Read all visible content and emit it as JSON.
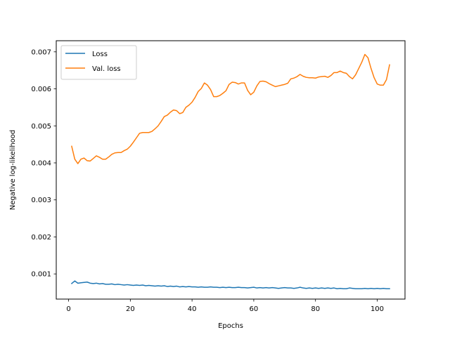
{
  "chart_data": {
    "type": "line",
    "title": "",
    "xlabel": "Epochs",
    "ylabel": "Negative log-likelihood",
    "xlim": [
      -4,
      109
    ],
    "ylim": [
      0.00032,
      0.0073
    ],
    "x_ticks": [
      0,
      20,
      40,
      60,
      80,
      100
    ],
    "x_tick_labels": [
      "0",
      "20",
      "40",
      "60",
      "80",
      "100"
    ],
    "y_ticks": [
      0.001,
      0.002,
      0.003,
      0.004,
      0.005,
      0.006,
      0.007
    ],
    "y_tick_labels": [
      "0.001",
      "0.002",
      "0.003",
      "0.004",
      "0.005",
      "0.006",
      "0.007"
    ],
    "grid": false,
    "legend": {
      "position": "top-left",
      "entries": [
        "Loss",
        "Val. loss"
      ]
    },
    "series": [
      {
        "name": "Loss",
        "color": "#1f77b4",
        "x": [
          1,
          2,
          3,
          4,
          5,
          6,
          7,
          8,
          9,
          10,
          11,
          12,
          13,
          14,
          15,
          16,
          17,
          18,
          19,
          20,
          21,
          22,
          23,
          24,
          25,
          26,
          27,
          28,
          29,
          30,
          31,
          32,
          33,
          34,
          35,
          36,
          37,
          38,
          39,
          40,
          41,
          42,
          43,
          44,
          45,
          46,
          47,
          48,
          49,
          50,
          51,
          52,
          53,
          54,
          55,
          56,
          57,
          58,
          59,
          60,
          61,
          62,
          63,
          64,
          65,
          66,
          67,
          68,
          69,
          70,
          71,
          72,
          73,
          74,
          75,
          76,
          77,
          78,
          79,
          80,
          81,
          82,
          83,
          84,
          85,
          86,
          87,
          88,
          89,
          90,
          91,
          92,
          93,
          94,
          95,
          96,
          97,
          98,
          99,
          100,
          101,
          102,
          103,
          104
        ],
        "values": [
          0.00074,
          0.00081,
          0.00075,
          0.00076,
          0.00077,
          0.00078,
          0.00075,
          0.00074,
          0.00075,
          0.00073,
          0.00074,
          0.00072,
          0.00072,
          0.00073,
          0.00071,
          0.00072,
          0.00071,
          0.0007,
          0.00071,
          0.0007,
          0.00069,
          0.0007,
          0.00069,
          0.0007,
          0.00068,
          0.00069,
          0.00068,
          0.00067,
          0.00068,
          0.00067,
          0.00068,
          0.00066,
          0.00067,
          0.00066,
          0.00067,
          0.00065,
          0.00066,
          0.00065,
          0.00066,
          0.00065,
          0.00065,
          0.00064,
          0.00065,
          0.00064,
          0.00064,
          0.00065,
          0.00064,
          0.00064,
          0.00063,
          0.00064,
          0.00063,
          0.00064,
          0.00063,
          0.00063,
          0.00064,
          0.00063,
          0.00063,
          0.00062,
          0.00063,
          0.00064,
          0.00062,
          0.00063,
          0.00062,
          0.00063,
          0.00062,
          0.00063,
          0.00062,
          0.00061,
          0.00062,
          0.00063,
          0.00062,
          0.00062,
          0.00061,
          0.00062,
          0.00064,
          0.00062,
          0.00061,
          0.00062,
          0.00061,
          0.00062,
          0.00061,
          0.00062,
          0.00061,
          0.00062,
          0.00061,
          0.00062,
          0.0006,
          0.00061,
          0.0006,
          0.0006,
          0.00062,
          0.00061,
          0.0006,
          0.0006,
          0.0006,
          0.00061,
          0.0006,
          0.00061,
          0.0006,
          0.00061,
          0.0006,
          0.00061,
          0.0006,
          0.0006
        ]
      },
      {
        "name": "Val. loss",
        "color": "#ff7f0e",
        "x": [
          1,
          2,
          3,
          4,
          5,
          6,
          7,
          8,
          9,
          10,
          11,
          12,
          13,
          14,
          15,
          16,
          17,
          18,
          19,
          20,
          21,
          22,
          23,
          24,
          25,
          26,
          27,
          28,
          29,
          30,
          31,
          32,
          33,
          34,
          35,
          36,
          37,
          38,
          39,
          40,
          41,
          42,
          43,
          44,
          45,
          46,
          47,
          48,
          49,
          50,
          51,
          52,
          53,
          54,
          55,
          56,
          57,
          58,
          59,
          60,
          61,
          62,
          63,
          64,
          65,
          66,
          67,
          68,
          69,
          70,
          71,
          72,
          73,
          74,
          75,
          76,
          77,
          78,
          79,
          80,
          81,
          82,
          83,
          84,
          85,
          86,
          87,
          88,
          89,
          90,
          91,
          92,
          93,
          94,
          95,
          96,
          97,
          98,
          99,
          100,
          101,
          102,
          103,
          104
        ],
        "values": [
          0.00445,
          0.0041,
          0.00398,
          0.0041,
          0.00413,
          0.00406,
          0.00405,
          0.00412,
          0.00419,
          0.00415,
          0.0041,
          0.0041,
          0.00416,
          0.00423,
          0.00427,
          0.00428,
          0.00428,
          0.00433,
          0.00437,
          0.00445,
          0.00456,
          0.00468,
          0.0048,
          0.00482,
          0.00482,
          0.00482,
          0.00485,
          0.00492,
          0.005,
          0.00512,
          0.00525,
          0.00529,
          0.00537,
          0.00543,
          0.00541,
          0.00533,
          0.00536,
          0.0055,
          0.00556,
          0.00564,
          0.00577,
          0.00593,
          0.00601,
          0.00616,
          0.0061,
          0.00598,
          0.00579,
          0.00579,
          0.00582,
          0.00588,
          0.00595,
          0.00612,
          0.00618,
          0.00617,
          0.00613,
          0.00616,
          0.00616,
          0.00596,
          0.00584,
          0.00591,
          0.00608,
          0.0062,
          0.00621,
          0.00619,
          0.00614,
          0.0061,
          0.00606,
          0.00608,
          0.0061,
          0.00612,
          0.00615,
          0.00627,
          0.00629,
          0.00633,
          0.00639,
          0.00634,
          0.00631,
          0.0063,
          0.0063,
          0.00629,
          0.00632,
          0.00633,
          0.00634,
          0.00631,
          0.00636,
          0.00644,
          0.00644,
          0.00648,
          0.00644,
          0.00642,
          0.00633,
          0.00627,
          0.00638,
          0.00655,
          0.00672,
          0.00693,
          0.00684,
          0.00655,
          0.0063,
          0.00613,
          0.0061,
          0.0061,
          0.00625,
          0.00665
        ]
      }
    ]
  }
}
